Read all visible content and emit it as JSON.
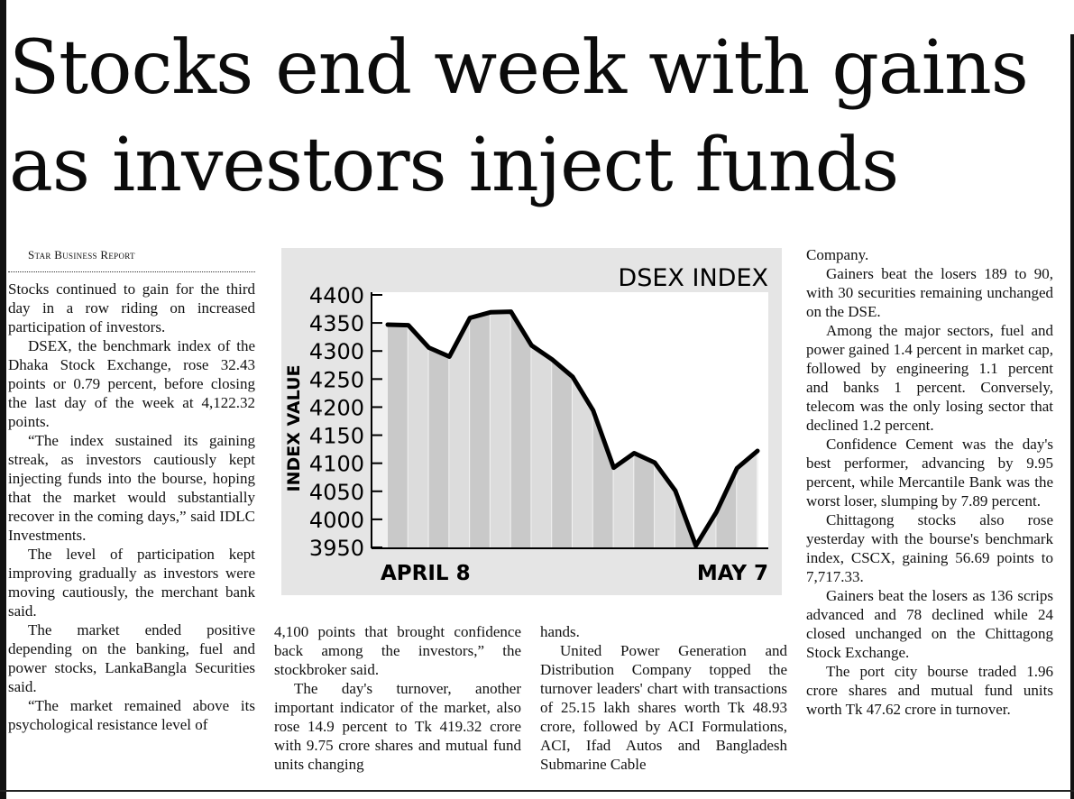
{
  "headline": "Stocks end week with gains as investors inject funds",
  "byline": "Star Business Report",
  "columns": {
    "col1": [
      "Stocks continued to gain for the third day in a row riding on increased participation of investors.",
      "DSEX, the benchmark index of the Dhaka Stock Exchange, rose 32.43 points or 0.79 percent, before closing the last day of the week at 4,122.32 points.",
      "“The index sustained its gaining streak, as investors cautiously kept injecting funds into the bourse, hoping that the market would substantially recover in the coming days,” said IDLC Investments.",
      "The level of participation kept improving gradually as investors were moving cautiously, the merchant bank said.",
      "The market ended positive depending on the banking, fuel and power stocks, LankaBangla Securities said.",
      "“The market remained above its psychological resistance level of"
    ],
    "col2": [
      "4,100 points that brought confidence back among the investors,” the stockbroker said.",
      "The day's turnover, another important indicator of the market, also rose 14.9 percent to Tk 419.32 crore with 9.75 crore shares and mutual fund units changing"
    ],
    "col3": [
      "hands.",
      "United Power Generation and Distribution Company topped the turnover leaders' chart with transactions of 25.15 lakh shares worth Tk 48.93 crore, followed by ACI Formulations, ACI, Ifad Autos and Bangladesh Submarine Cable"
    ],
    "col4": [
      "Company.",
      "Gainers beat the losers 189 to 90, with 30 securities remaining unchanged on the DSE.",
      "Among the major sectors, fuel and power gained 1.4 percent in market cap, followed by engineering 1.1 percent and banks 1 percent. Conversely, telecom was the only losing sector that declined 1.2 percent.",
      "Confidence Cement was the day's best performer, advancing by 9.95 percent, while Mercantile Bank was the worst loser, slumping by 7.89 percent.",
      "Chittagong stocks also rose yesterday with the bourse's benchmark index, CSCX, gaining 56.69 points to 7,717.33.",
      "Gainers beat the losers as 136 scrips advanced and 78 declined while 24 closed unchanged on the Chittagong Stock Exchange.",
      "The port city bourse traded 1.96 crore shares and mutual fund units worth Tk 47.62 crore in turnover."
    ]
  },
  "chart_data": {
    "type": "area",
    "title": "DSEX INDEX",
    "ylabel": "INDEX VALUE",
    "x_start_label": "APRIL 8",
    "x_end_label": "MAY 7",
    "ylim": [
      3950,
      4400
    ],
    "yticks": [
      "4400",
      "4350",
      "4300",
      "4250",
      "4200",
      "4150",
      "4100",
      "4050",
      "4000",
      "3950"
    ],
    "values": [
      4347,
      4346,
      4306,
      4290,
      4359,
      4369,
      4370,
      4310,
      4285,
      4254,
      4194,
      4092,
      4118,
      4101,
      4051,
      3953,
      4013,
      4091,
      4122
    ],
    "grid": false,
    "legend": "none",
    "colors": {
      "panel": "#e5e5e5",
      "plot": "#ffffff",
      "stripe": "#c9c9c9",
      "line": "#000000"
    }
  }
}
